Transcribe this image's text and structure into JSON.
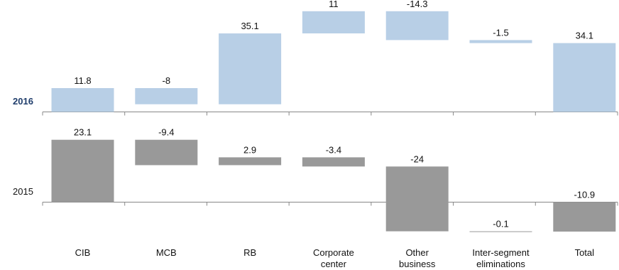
{
  "chart_data": {
    "type": "bar",
    "subtype": "waterfall",
    "categories": [
      "CIB",
      "MCB",
      "RB",
      "Corporate center",
      "Other business",
      "Inter-segment eliminations",
      "Total"
    ],
    "category_lines": [
      [
        "CIB"
      ],
      [
        "MCB"
      ],
      [
        "RB"
      ],
      [
        "Corporate",
        "center"
      ],
      [
        "Other",
        "business"
      ],
      [
        "Inter-segment",
        "eliminations"
      ],
      [
        "Total"
      ]
    ],
    "series": [
      {
        "name": "2016",
        "values": [
          11.8,
          -8,
          35.1,
          11,
          -14.3,
          -1.5,
          34.1
        ],
        "labels": [
          "11.8",
          "-8",
          "35.1",
          "11",
          "-14.3",
          "-1.5",
          "34.1"
        ],
        "color": "#b8cfe6"
      },
      {
        "name": "2015",
        "values": [
          23.1,
          -9.4,
          2.9,
          -3.4,
          -24,
          -0.1,
          -10.9
        ],
        "labels": [
          "23.1",
          "-9.4",
          "2.9",
          "-3.4",
          "-24",
          "-0.1",
          "-10.9"
        ],
        "color": "#999999"
      }
    ],
    "year_label_colors": [
      "#1f3d6b",
      "#111111"
    ],
    "legend": "left",
    "grid": false,
    "colors": {
      "axis": "#888888"
    }
  }
}
